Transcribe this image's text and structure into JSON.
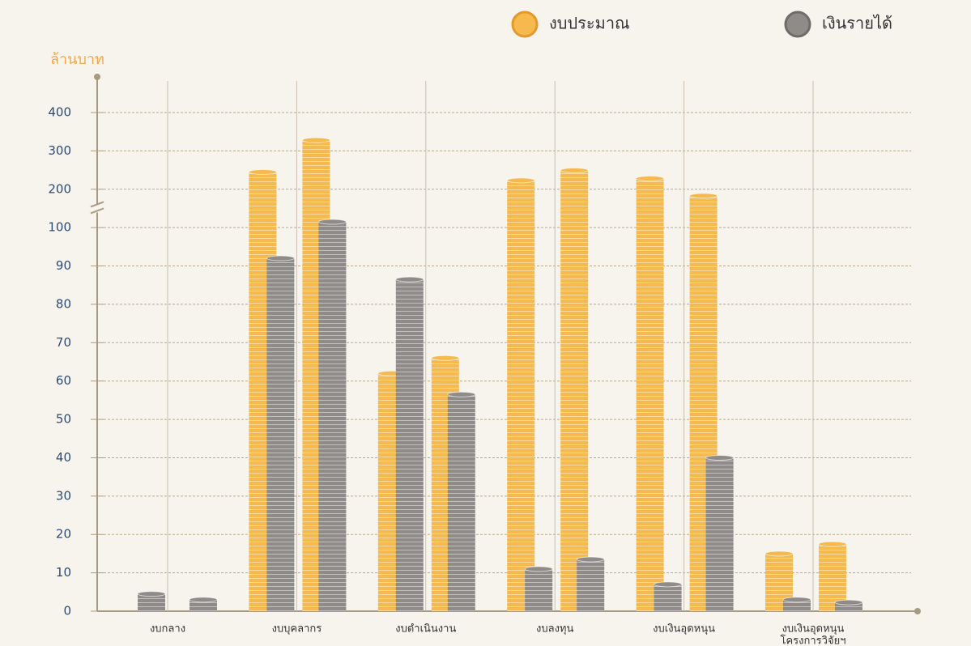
{
  "chart_data": {
    "type": "bar",
    "y_label": "ล้านบาท",
    "categories": [
      "งบกลาง",
      "งบบุคลากร",
      "งบดำเนินงาน",
      "งบลงทุน",
      "งบเงินอุดหนุน",
      [
        "งบเงินอุดหนุน",
        "โครงการวิจัยฯ"
      ]
    ],
    "series": [
      {
        "name": "งบประมาณ",
        "color": "#f5b94e",
        "values": [
          [
            null,
            null
          ],
          [
            245,
            328
          ],
          [
            62,
            66
          ],
          [
            223,
            249
          ],
          [
            228,
            183
          ],
          [
            15,
            17.5
          ]
        ]
      },
      {
        "name": "เงินรายได้",
        "color": "#8f8b88",
        "values": [
          [
            4.5,
            3
          ],
          [
            92,
            115
          ],
          [
            86.5,
            56.5
          ],
          [
            11,
            13.5
          ],
          [
            7,
            40
          ],
          [
            3,
            2.3
          ]
        ]
      }
    ],
    "ylim": [
      0,
      400
    ],
    "yticks": [
      0,
      10,
      20,
      30,
      40,
      50,
      60,
      70,
      80,
      90,
      100,
      200,
      300,
      400
    ],
    "y_axis_break": true,
    "grid": true,
    "legend": "top-right"
  }
}
